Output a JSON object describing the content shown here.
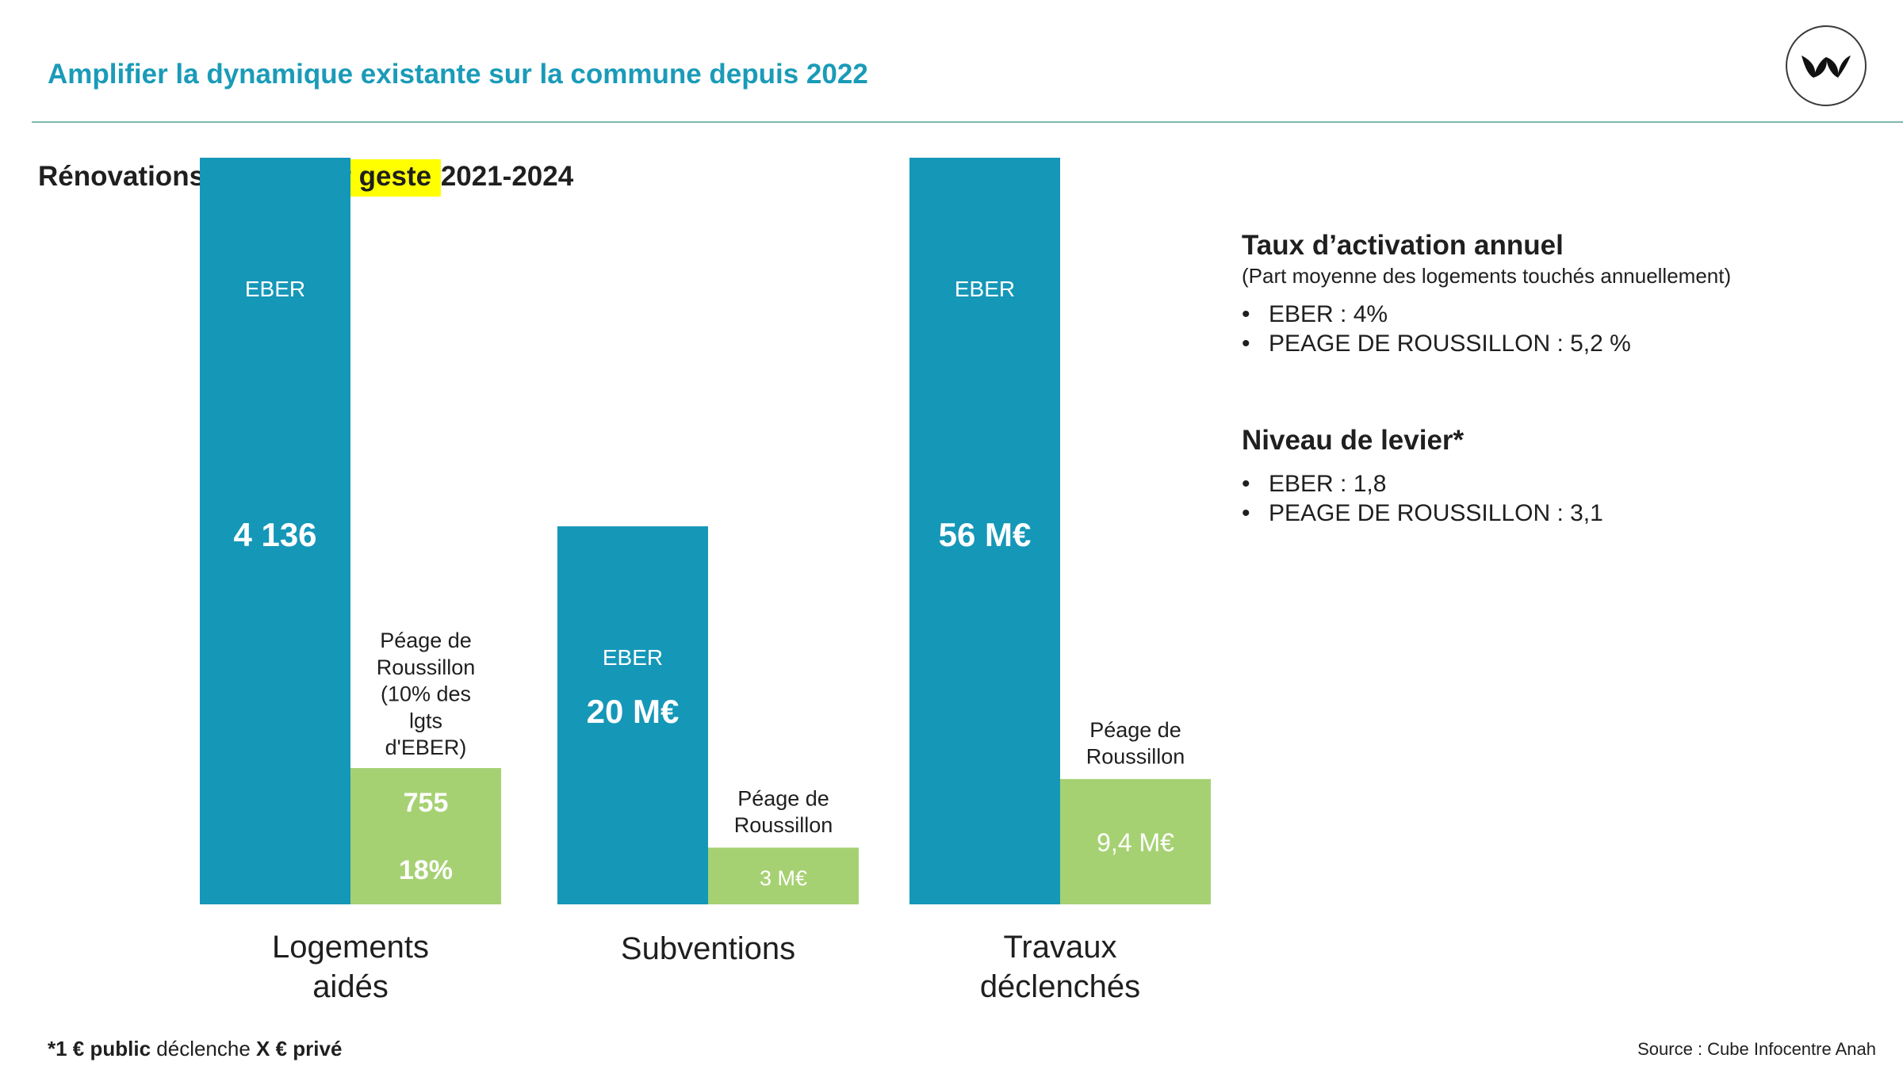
{
  "header": {
    "title": "Amplifier la dynamique existante sur la commune depuis 2022",
    "logo": "leaf-logo-icon"
  },
  "subtitle": {
    "before": "Rénovations aidées ",
    "highlight": "par geste ",
    "after": "2021-2024",
    "highlight_color": "#ffff00"
  },
  "colors": {
    "accent": "#1a9bb8",
    "eber": "#1597b8",
    "peage": "#a6d173"
  },
  "chart_data": {
    "type": "bar",
    "categories": [
      "Logements\naidés",
      "Subventions",
      "Travaux\ndéclenchés"
    ],
    "groups": [
      {
        "category": "Logements\naidés",
        "bars": [
          {
            "series": "EBER",
            "label": "EBER",
            "value": 4136,
            "value_label": "4 136",
            "extra_label": "",
            "ymax": 4136
          },
          {
            "series": "Péage de Roussillon",
            "label": "Péage de\nRoussillon\n(10% des\nlgts\nd'EBER)",
            "value": 755,
            "value_label": "755",
            "extra_label": "18%",
            "ymax": 4136
          }
        ]
      },
      {
        "category": "Subventions",
        "bars": [
          {
            "series": "EBER",
            "label": "EBER",
            "value": 20,
            "value_label": "20 M€",
            "extra_label": "",
            "ymax": 39.5
          },
          {
            "series": "Péage de Roussillon",
            "label": "Péage de\nRoussillon",
            "value": 3,
            "value_label": "3 M€",
            "extra_label": "",
            "ymax": 39.5
          }
        ]
      },
      {
        "category": "Travaux\ndéclenchés",
        "bars": [
          {
            "series": "EBER",
            "label": "EBER",
            "value": 56,
            "value_label": "56 M€",
            "extra_label": "",
            "ymax": 56
          },
          {
            "series": "Péage de Roussillon",
            "label": "Péage de\nRoussillon",
            "value": 9.4,
            "value_label": "9,4 M€",
            "extra_label": "",
            "ymax": 56
          }
        ]
      }
    ]
  },
  "info": {
    "activation_title": "Taux d’activation annuel",
    "activation_note": "(Part moyenne des logements touchés annuellement)",
    "activation_items": [
      "EBER : 4%",
      "PEAGE DE ROUSSILLON : 5,2 %"
    ],
    "leverage_title": "Niveau de levier*",
    "leverage_items": [
      "EBER : 1,8",
      "PEAGE DE ROUSSILLON : 3,1"
    ],
    "bullet": "•"
  },
  "footer": {
    "note_parts": [
      "*1 € public",
      " déclenche ",
      "X € privé"
    ],
    "source": "Source : Cube Infocentre Anah"
  }
}
